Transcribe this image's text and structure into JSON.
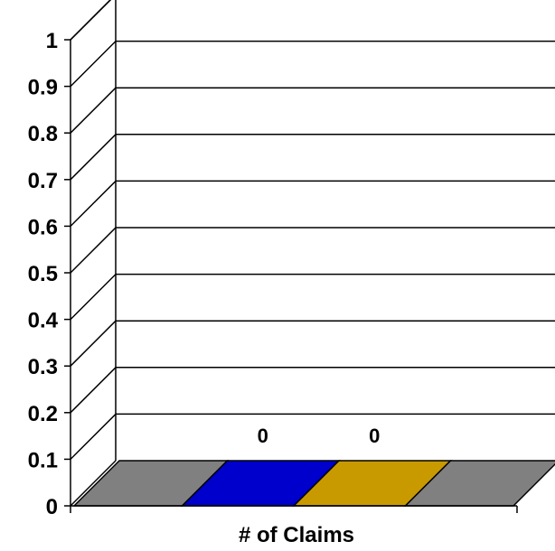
{
  "chart_data": {
    "type": "bar",
    "xlabel": "# of Claims",
    "ylabel": "",
    "ylim": [
      0,
      1
    ],
    "yticks": [
      "0",
      "0.1",
      "0.2",
      "0.3",
      "0.4",
      "0.5",
      "0.6",
      "0.7",
      "0.8",
      "0.9",
      "1"
    ],
    "grid": true,
    "bars": [
      {
        "value": 0,
        "color": "#808080",
        "label": ""
      },
      {
        "value": 0,
        "color": "#0000cc",
        "label": "0"
      },
      {
        "value": 0,
        "color": "#c89a00",
        "label": "0"
      },
      {
        "value": 0,
        "color": "#808080",
        "label": ""
      }
    ]
  }
}
